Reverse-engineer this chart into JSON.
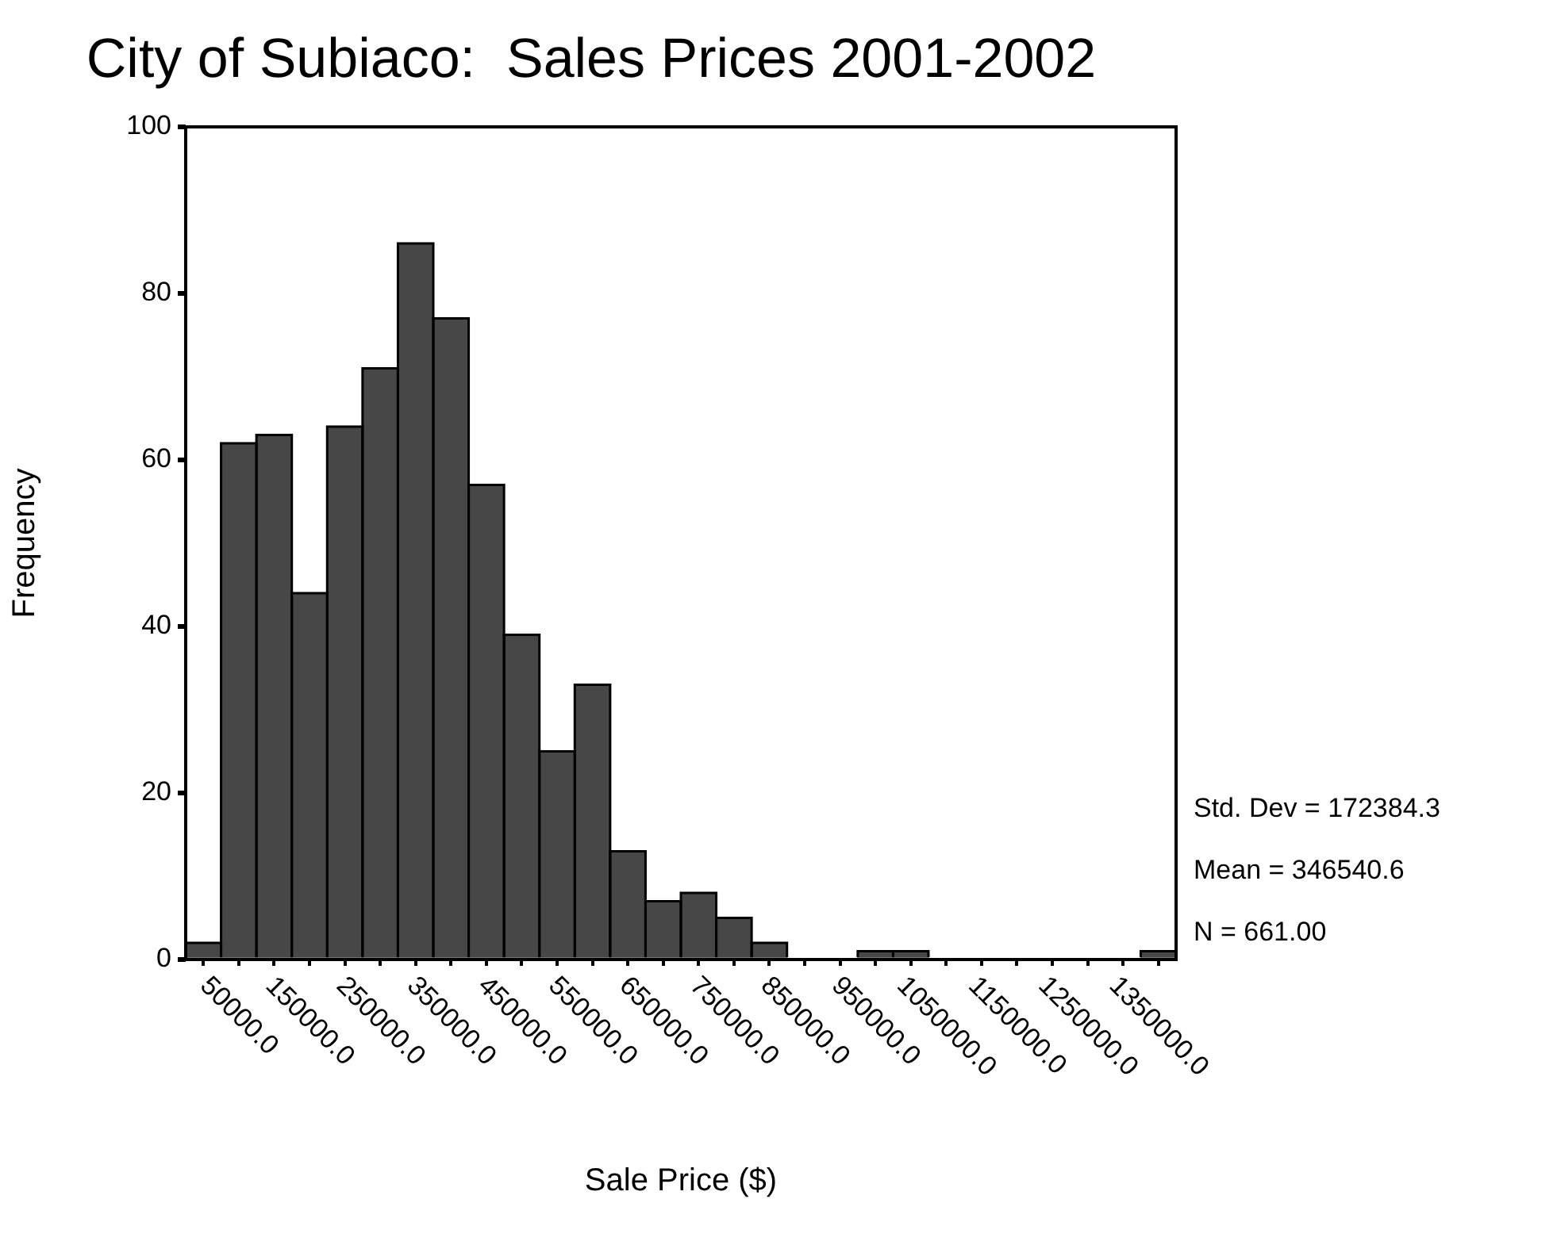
{
  "chart_data": {
    "type": "histogram",
    "title": "City of Subiaco:  Sales Prices 2001-2002",
    "xlabel": "Sale Price ($)",
    "ylabel": "Frequency",
    "bins": [
      -25000,
      25000,
      75000,
      125000,
      175000,
      225000,
      275000,
      325000,
      375000,
      425000,
      475000,
      525000,
      575000,
      625000,
      675000,
      725000,
      775000,
      825000,
      875000,
      925000,
      975000,
      1025000,
      1075000,
      1125000,
      1175000,
      1225000,
      1275000,
      1325000,
      1375000
    ],
    "values": [
      2,
      62,
      63,
      44,
      64,
      71,
      86,
      77,
      57,
      39,
      25,
      33,
      13,
      7,
      8,
      5,
      2,
      0,
      0,
      1,
      1,
      0,
      0,
      0,
      0,
      0,
      0,
      1
    ],
    "color": "#474747",
    "xlim": [
      -25000,
      1375000
    ],
    "xticks": [
      {
        "value": 0,
        "label": null
      },
      {
        "value": 50000,
        "label": "50000.0"
      },
      {
        "value": 100000,
        "label": null
      },
      {
        "value": 150000,
        "label": "150000.0"
      },
      {
        "value": 200000,
        "label": null
      },
      {
        "value": 250000,
        "label": "250000.0"
      },
      {
        "value": 300000,
        "label": null
      },
      {
        "value": 350000,
        "label": "350000.0"
      },
      {
        "value": 400000,
        "label": null
      },
      {
        "value": 450000,
        "label": "450000.0"
      },
      {
        "value": 500000,
        "label": null
      },
      {
        "value": 550000,
        "label": "550000.0"
      },
      {
        "value": 600000,
        "label": null
      },
      {
        "value": 650000,
        "label": "650000.0"
      },
      {
        "value": 700000,
        "label": null
      },
      {
        "value": 750000,
        "label": "750000.0"
      },
      {
        "value": 800000,
        "label": null
      },
      {
        "value": 850000,
        "label": "850000.0"
      },
      {
        "value": 900000,
        "label": null
      },
      {
        "value": 950000,
        "label": "950000.0"
      },
      {
        "value": 1000000,
        "label": null
      },
      {
        "value": 1050000,
        "label": "1050000.0"
      },
      {
        "value": 1100000,
        "label": null
      },
      {
        "value": 1150000,
        "label": "1150000.0"
      },
      {
        "value": 1200000,
        "label": null
      },
      {
        "value": 1250000,
        "label": "1250000.0"
      },
      {
        "value": 1300000,
        "label": null
      },
      {
        "value": 1350000,
        "label": "1350000.0"
      }
    ],
    "ylim": [
      0,
      100
    ],
    "yticks": [
      0,
      20,
      40,
      60,
      80,
      100
    ],
    "grid": false,
    "legend": false,
    "annotations": [
      "Std. Dev = 172384.3",
      "Mean = 346540.6",
      "N = 661.00"
    ]
  }
}
